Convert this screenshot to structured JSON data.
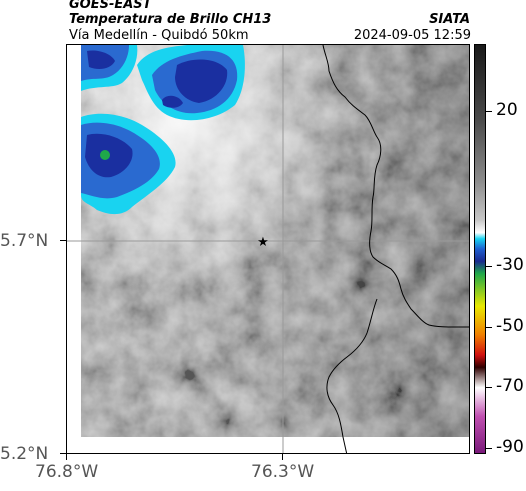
{
  "header": {
    "agency": "GOES-EAST",
    "product": "Temperatura de Brillo CH13",
    "route": "Vía Medellín - Quibdó 50km",
    "source": "SIATA",
    "datetime": "2024-09-05 12:59"
  },
  "map": {
    "lat_labels": [
      "5.7°N",
      "5.2°N"
    ],
    "lon_labels": [
      "76.8°W",
      "76.3°W"
    ],
    "marker": "star-icon",
    "colors": {
      "cold_cloud_deep": "#1a2fa0",
      "cold_cloud": "#2a6ad0",
      "cyan_edge": "#19d3f0",
      "warm_surface": "#8c8c8c",
      "border_line": "#000000"
    }
  },
  "colorbar": {
    "labels": [
      "20",
      "-30",
      "-50",
      "-70",
      "-90"
    ],
    "stops": [
      "#1a1a1a",
      "#4a4a4a",
      "#8a8a8a",
      "#c8c8c8",
      "#ffffff",
      "#19d3f0",
      "#1f5fd0",
      "#1a2a90",
      "#1fa84a",
      "#e8e800",
      "#f08000",
      "#d01010",
      "#300000",
      "#ffffff",
      "#c050b0",
      "#7a1a7a"
    ]
  }
}
